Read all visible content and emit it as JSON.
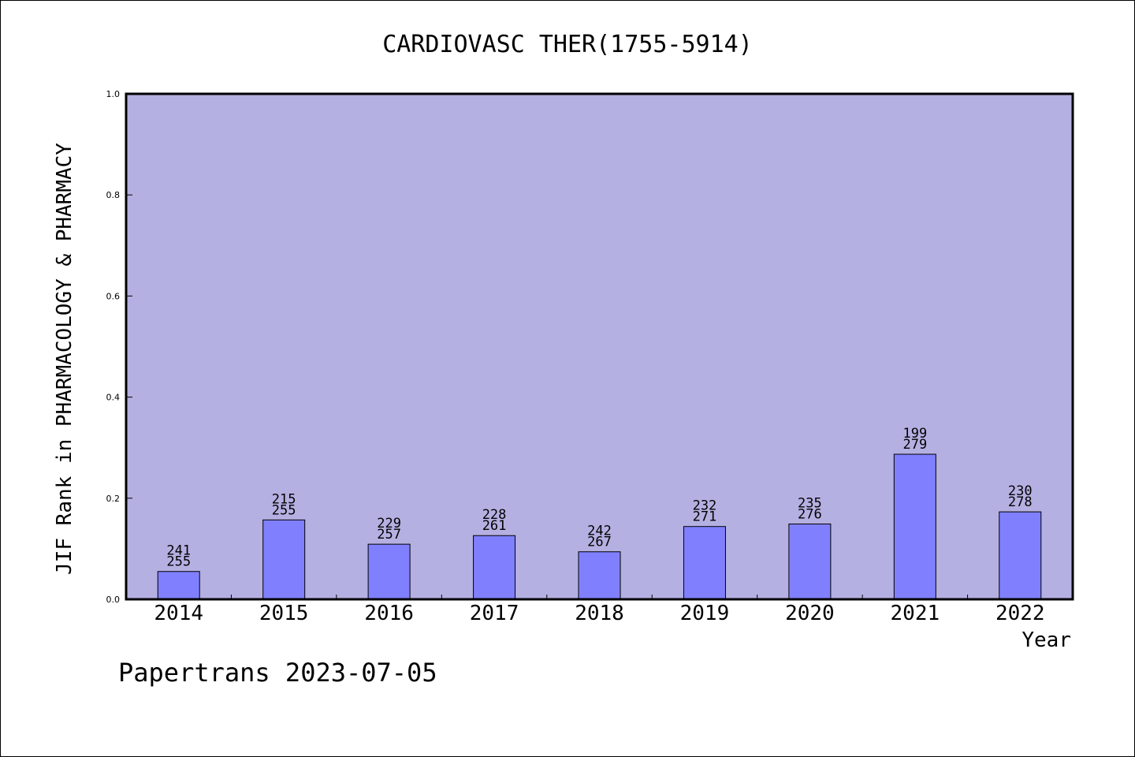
{
  "chart_data": {
    "type": "bar",
    "title": "CARDIOVASC THER(1755-5914)",
    "xlabel": "Year",
    "ylabel": "JIF Rank in PHARMACOLOGY & PHARMACY",
    "ylim": [
      0,
      1.0
    ],
    "yticks": [
      "0.0",
      "0.2",
      "0.4",
      "0.6",
      "0.8",
      "1.0"
    ],
    "categories": [
      "2014",
      "2015",
      "2016",
      "2017",
      "2018",
      "2019",
      "2020",
      "2021",
      "2022"
    ],
    "values": [
      0.055,
      0.157,
      0.109,
      0.126,
      0.094,
      0.144,
      0.149,
      0.287,
      0.173
    ],
    "rank": [
      "241",
      "215",
      "229",
      "228",
      "242",
      "232",
      "235",
      "199",
      "230"
    ],
    "total": [
      "255",
      "255",
      "257",
      "261",
      "267",
      "271",
      "276",
      "279",
      "278"
    ],
    "grid": false,
    "colors": {
      "plot_bg": "#b5b0e2",
      "bar": "#8080ff"
    }
  },
  "footer": "Papertrans 2023-07-05"
}
